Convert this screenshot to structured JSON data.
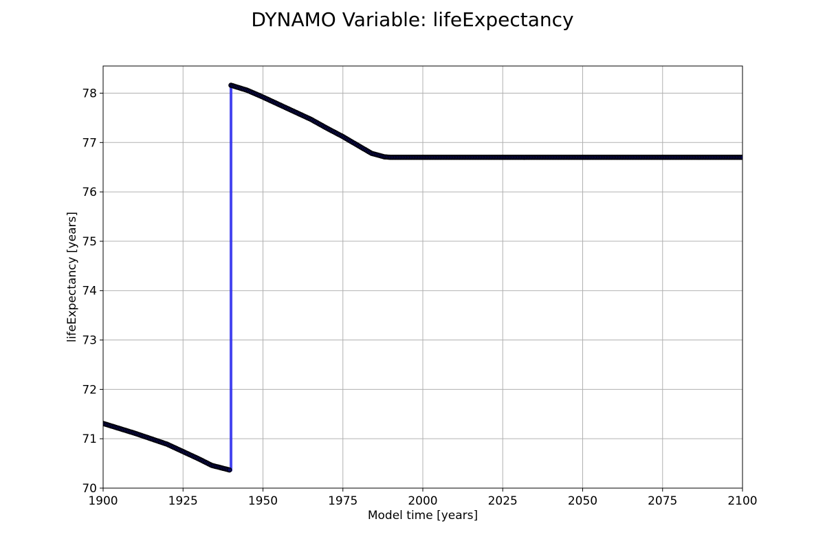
{
  "chart_data": {
    "type": "line",
    "title": "DYNAMO Variable: lifeExpectancy",
    "xlabel": "Model time [years]",
    "ylabel": "lifeExpectancy [years]",
    "xlim": [
      1900,
      2100
    ],
    "ylim": [
      70,
      78.55
    ],
    "grid": true,
    "x_ticks": [
      1900,
      1925,
      1950,
      1975,
      2000,
      2025,
      2050,
      2075,
      2100
    ],
    "y_ticks": [
      70,
      71,
      72,
      73,
      74,
      75,
      76,
      77,
      78
    ],
    "colors": {
      "line": "#3333ee",
      "marker": "#0a0a5a"
    },
    "series": [
      {
        "keypoints": [
          [
            1900,
            71.31
          ],
          [
            1910,
            71.11
          ],
          [
            1920,
            70.89
          ],
          [
            1925,
            70.74
          ],
          [
            1930,
            70.59
          ],
          [
            1934,
            70.46
          ],
          [
            1940,
            70.36
          ],
          [
            1940,
            78.16
          ],
          [
            1945,
            78.06
          ],
          [
            1950,
            77.92
          ],
          [
            1955,
            77.77
          ],
          [
            1960,
            77.62
          ],
          [
            1965,
            77.47
          ],
          [
            1970,
            77.29
          ],
          [
            1975,
            77.12
          ],
          [
            1980,
            76.93
          ],
          [
            1984,
            76.78
          ],
          [
            1988,
            76.71
          ],
          [
            1990,
            76.7
          ],
          [
            2100,
            76.7
          ]
        ],
        "marker_step": 0.5
      }
    ]
  }
}
